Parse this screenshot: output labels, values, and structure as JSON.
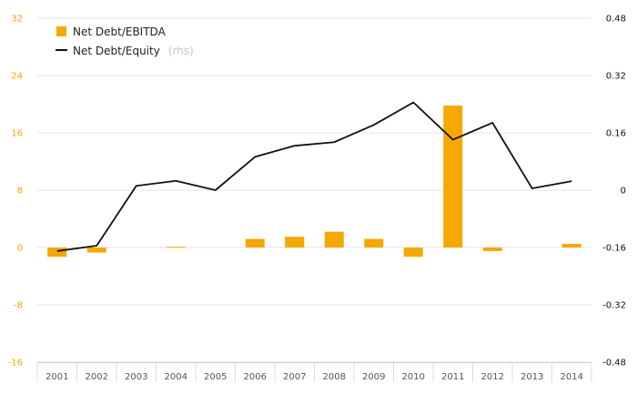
{
  "chart_data": {
    "type": "bar",
    "categories": [
      "2001",
      "2002",
      "2003",
      "2004",
      "2005",
      "2006",
      "2007",
      "2008",
      "2009",
      "2010",
      "2011",
      "2012",
      "2013",
      "2014"
    ],
    "series": [
      {
        "name": "Net Debt/EBITDA",
        "type": "bar",
        "axis": "left",
        "color": "#f5a800",
        "values": [
          -1.3,
          -0.7,
          0.0,
          0.1,
          0.0,
          1.2,
          1.5,
          2.2,
          1.2,
          -1.3,
          19.8,
          -0.5,
          0.0,
          0.5
        ]
      },
      {
        "name": "Net Debt/Equity",
        "type": "line",
        "axis": "right",
        "color": "#111111",
        "values": [
          -0.17,
          -0.155,
          0.012,
          0.026,
          0.0,
          0.093,
          0.124,
          0.134,
          0.182,
          0.245,
          0.141,
          0.188,
          0.005,
          0.025
        ]
      }
    ],
    "left_axis": {
      "ticks": [
        "32",
        "24",
        "16",
        "8",
        "0",
        "-8",
        "-16"
      ],
      "range": [
        -16,
        32
      ],
      "tick_color": "#f5a800"
    },
    "right_axis": {
      "ticks": [
        "0.48",
        "0.32",
        "0.16",
        "0",
        "-0.16",
        "-0.32",
        "-0.48"
      ],
      "range": [
        -0.48,
        0.48
      ],
      "tick_color": "#111111"
    },
    "legend": {
      "placement": "top-left",
      "items": [
        {
          "label": "Net Debt/EBITDA",
          "note": "",
          "symbol": "bar"
        },
        {
          "label": "Net Debt/Equity",
          "note": "(rhs)",
          "symbol": "line"
        }
      ]
    },
    "grid": true
  }
}
